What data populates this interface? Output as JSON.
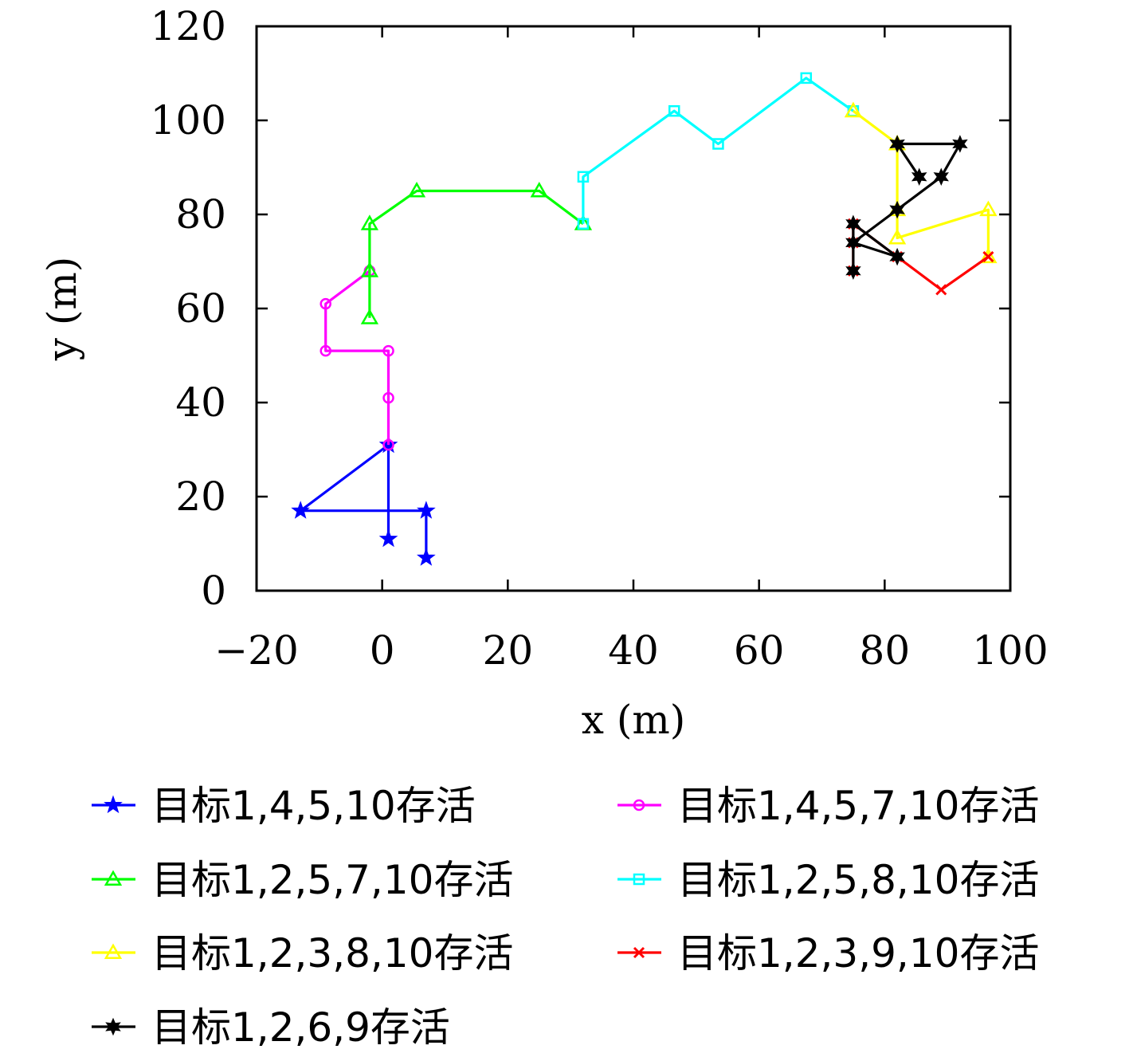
{
  "chart_data": {
    "type": "line",
    "xlabel": "x (m)",
    "ylabel": "y (m)",
    "xlim": [
      -20,
      100
    ],
    "ylim": [
      0,
      120
    ],
    "xticks": [
      "−20",
      "0",
      "20",
      "40",
      "60",
      "80",
      "100"
    ],
    "yticks": [
      "0",
      "20",
      "40",
      "60",
      "80",
      "100",
      "120"
    ],
    "grid": false,
    "legend_position": "bottom",
    "series": [
      {
        "name": "目标1,4,5,10存活",
        "color": "#0000ff",
        "marker": "star",
        "x": [
          7,
          7,
          -13,
          1,
          1
        ],
        "y": [
          7,
          17,
          17,
          31,
          11
        ]
      },
      {
        "name": "目标1,4,5,7,10存活",
        "color": "#ff00ff",
        "marker": "circle",
        "x": [
          1,
          1,
          1,
          -9,
          -9,
          -2
        ],
        "y": [
          31,
          41,
          51,
          51,
          61,
          68
        ]
      },
      {
        "name": "目标1,2,5,7,10存活",
        "color": "#00ff00",
        "marker": "triangle",
        "x": [
          -2,
          -2,
          -2,
          5.5,
          25,
          32
        ],
        "y": [
          58,
          68,
          78,
          85,
          85,
          78
        ]
      },
      {
        "name": "目标1,2,5,8,10存活",
        "color": "#00ffff",
        "marker": "square",
        "x": [
          32,
          32,
          46.5,
          53.5,
          67.5,
          75
        ],
        "y": [
          78,
          88,
          102,
          95,
          109,
          102
        ]
      },
      {
        "name": "目标1,2,3,8,10存活",
        "color": "#ffff00",
        "marker": "triangle",
        "x": [
          75,
          82,
          82,
          82,
          96.5,
          96.5
        ],
        "y": [
          102,
          95,
          81,
          75,
          81,
          71
        ]
      },
      {
        "name": "目标1,2,3,9,10存活",
        "color": "#ff0000",
        "marker": "x",
        "x": [
          96.5,
          89,
          82,
          75,
          75,
          75
        ],
        "y": [
          71,
          64,
          71,
          78,
          74,
          68
        ]
      },
      {
        "name": "目标1,2,6,9存活",
        "color": "#000000",
        "marker": "hexstar",
        "x": [
          75,
          75,
          75,
          82,
          75,
          82,
          89,
          92,
          82,
          85.5
        ],
        "y": [
          68,
          74,
          78,
          71,
          74,
          81,
          88,
          95,
          95,
          88
        ]
      }
    ]
  }
}
